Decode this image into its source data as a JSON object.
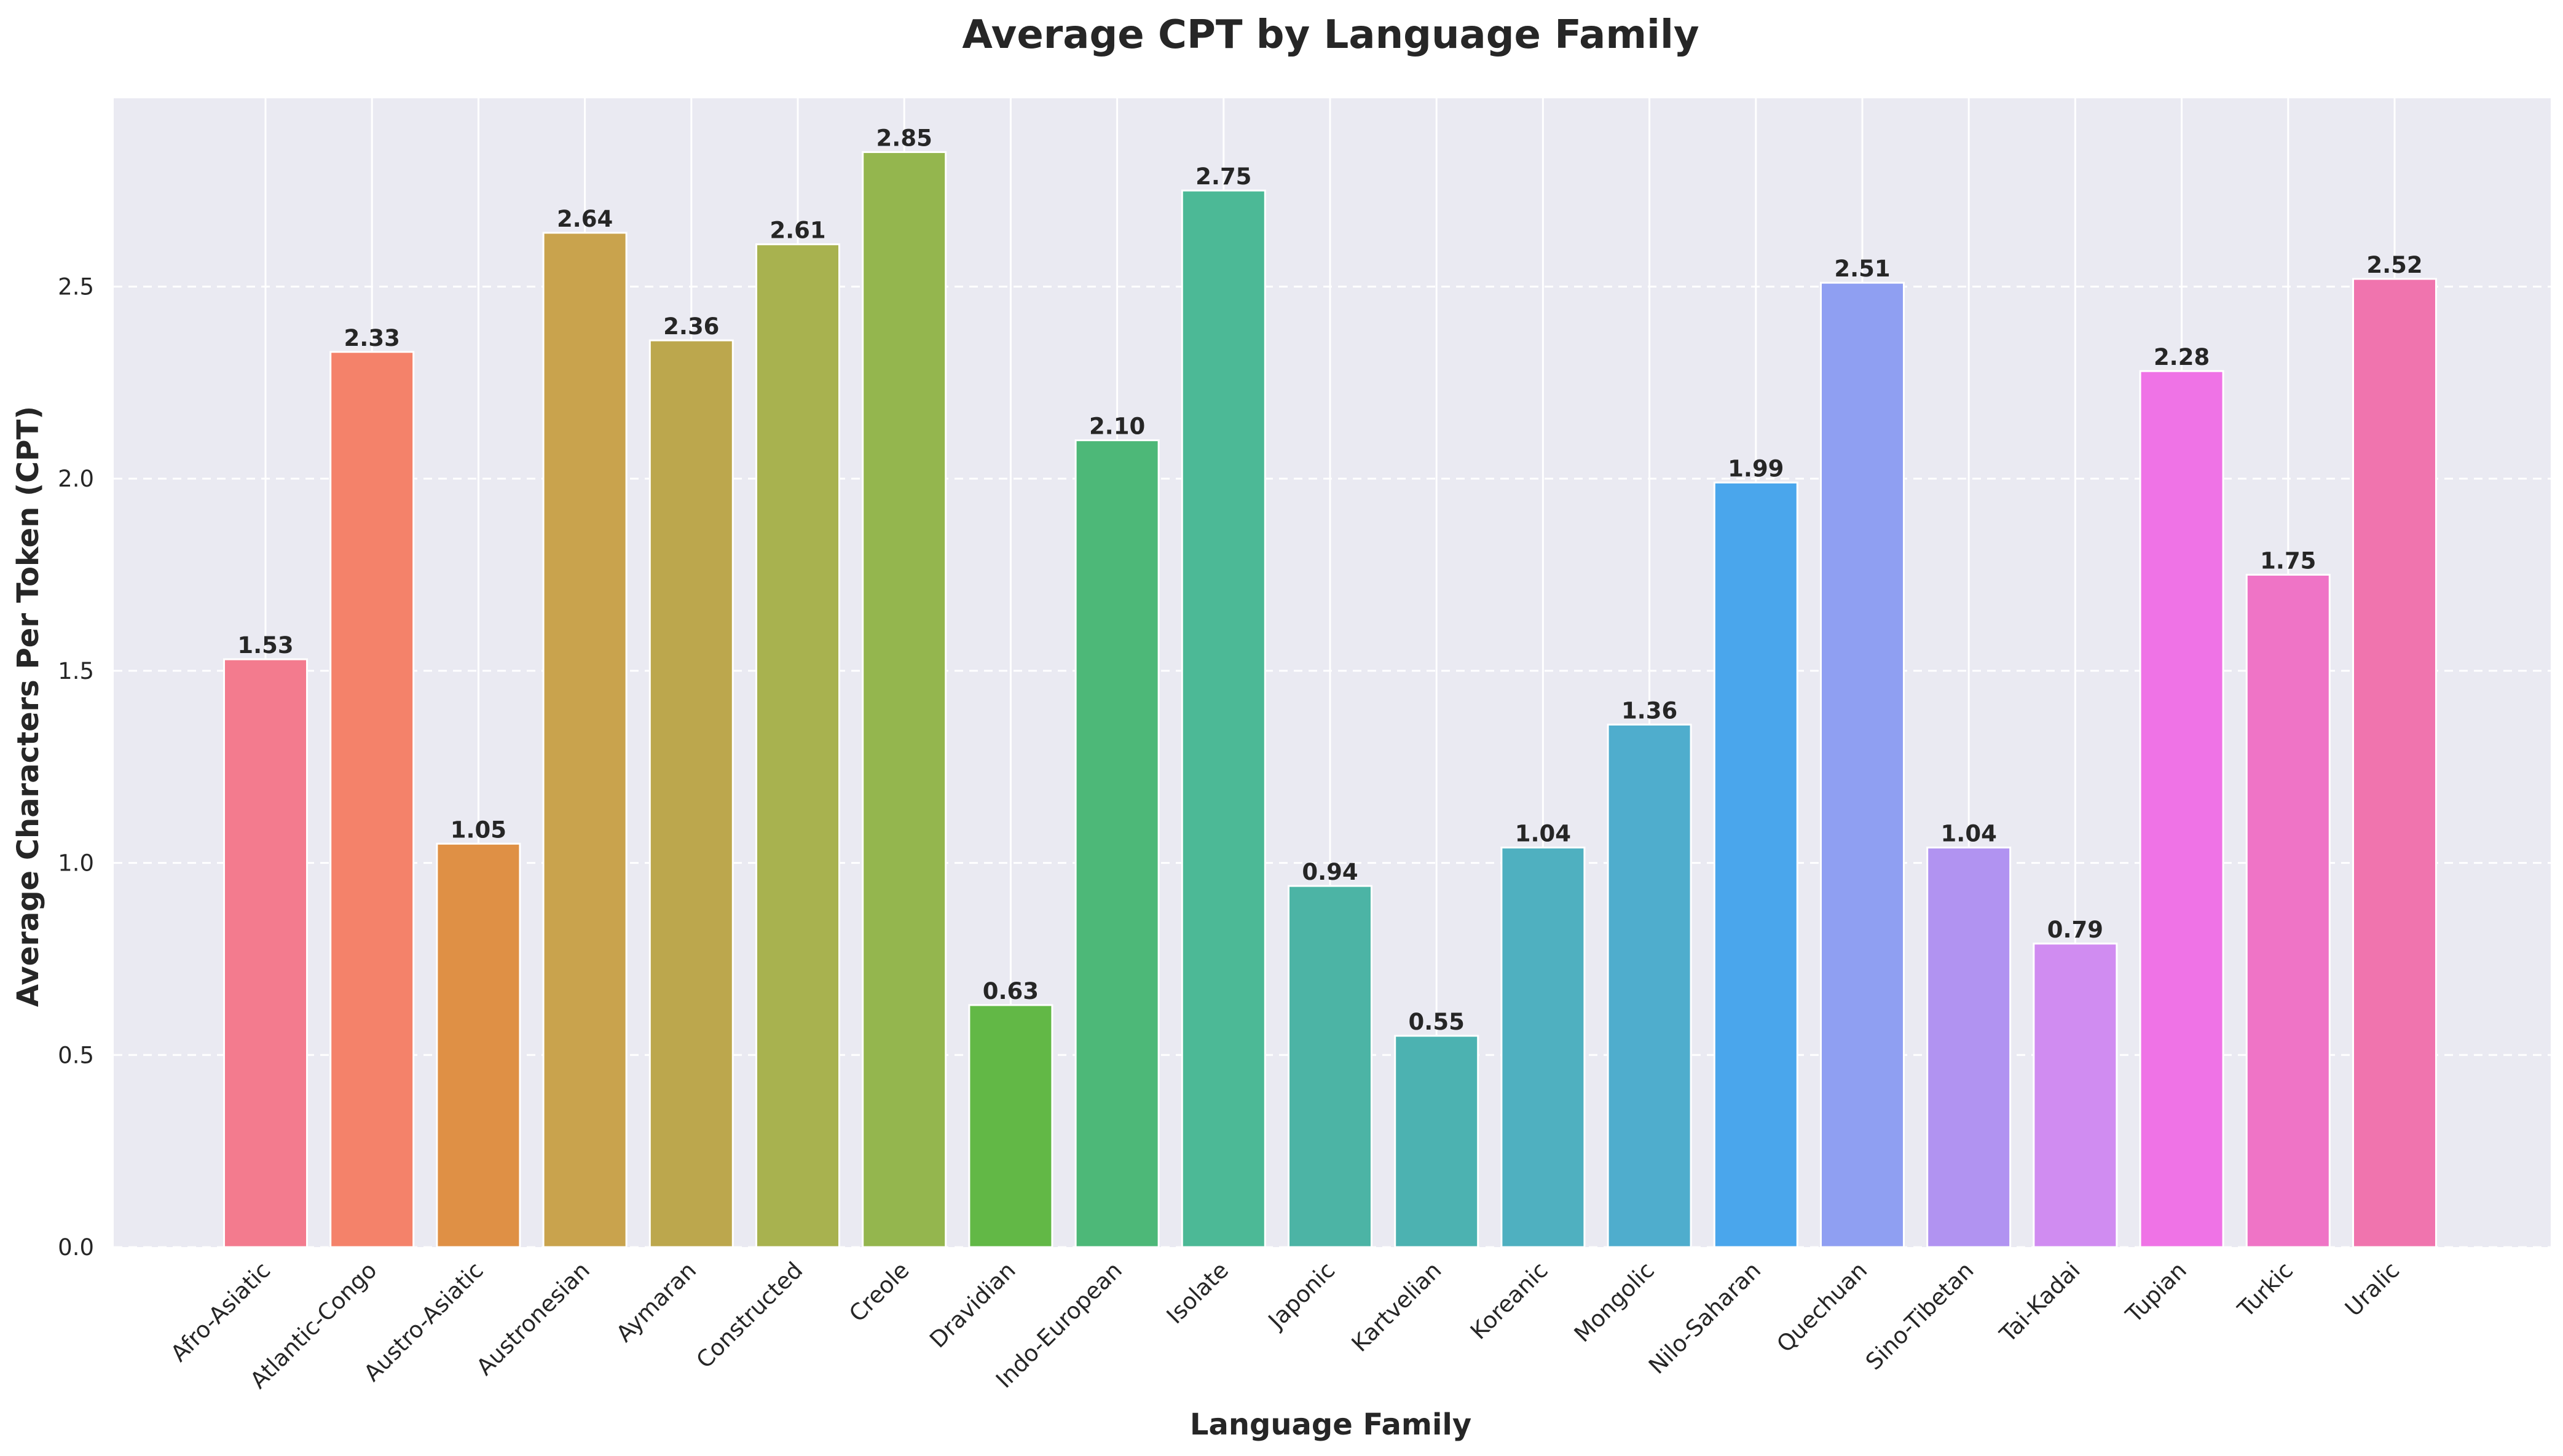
{
  "chart_data": {
    "type": "bar",
    "title": "Average CPT by Language Family",
    "xlabel": "Language Family",
    "ylabel": "Average Characters Per Token (CPT)",
    "ylim": [
      0,
      2.99
    ],
    "yticks": [
      "0.0",
      "0.5",
      "1.0",
      "1.5",
      "2.0",
      "2.5"
    ],
    "grid": true,
    "categories": [
      "Afro-Asiatic",
      "Atlantic-Congo",
      "Austro-Asiatic",
      "Austronesian",
      "Aymaran",
      "Constructed",
      "Creole",
      "Dravidian",
      "Indo-European",
      "Isolate",
      "Japonic",
      "Kartvelian",
      "Koreanic",
      "Mongolic",
      "Nilo-Saharan",
      "Quechuan",
      "Sino-Tibetan",
      "Tai-Kadai",
      "Tupian",
      "Turkic",
      "Uralic"
    ],
    "values": [
      1.53,
      2.33,
      1.05,
      2.64,
      2.36,
      2.61,
      2.85,
      0.63,
      2.1,
      2.75,
      0.94,
      0.55,
      1.04,
      1.36,
      1.99,
      2.51,
      1.04,
      0.79,
      2.28,
      1.75,
      2.52
    ],
    "value_labels": [
      "1.53",
      "2.33",
      "1.05",
      "2.64",
      "2.36",
      "2.61",
      "2.85",
      "0.63",
      "2.10",
      "2.75",
      "0.94",
      "0.55",
      "1.04",
      "1.36",
      "1.99",
      "2.51",
      "1.04",
      "0.79",
      "2.28",
      "1.75",
      "2.52"
    ],
    "colors": [
      "#f37b8e",
      "#f4826a",
      "#df9045",
      "#c9a34d",
      "#bca74d",
      "#a8b24f",
      "#94b64e",
      "#62b846",
      "#4db878",
      "#4cb996",
      "#4cb4a5",
      "#4cb2b1",
      "#4fb0c0",
      "#4fadcd",
      "#4aa6ec",
      "#8f9ff2",
      "#b193f1",
      "#d08cf1",
      "#ef73e6",
      "#ef74c6",
      "#f074ae"
    ],
    "background": "#eaeaf2"
  }
}
